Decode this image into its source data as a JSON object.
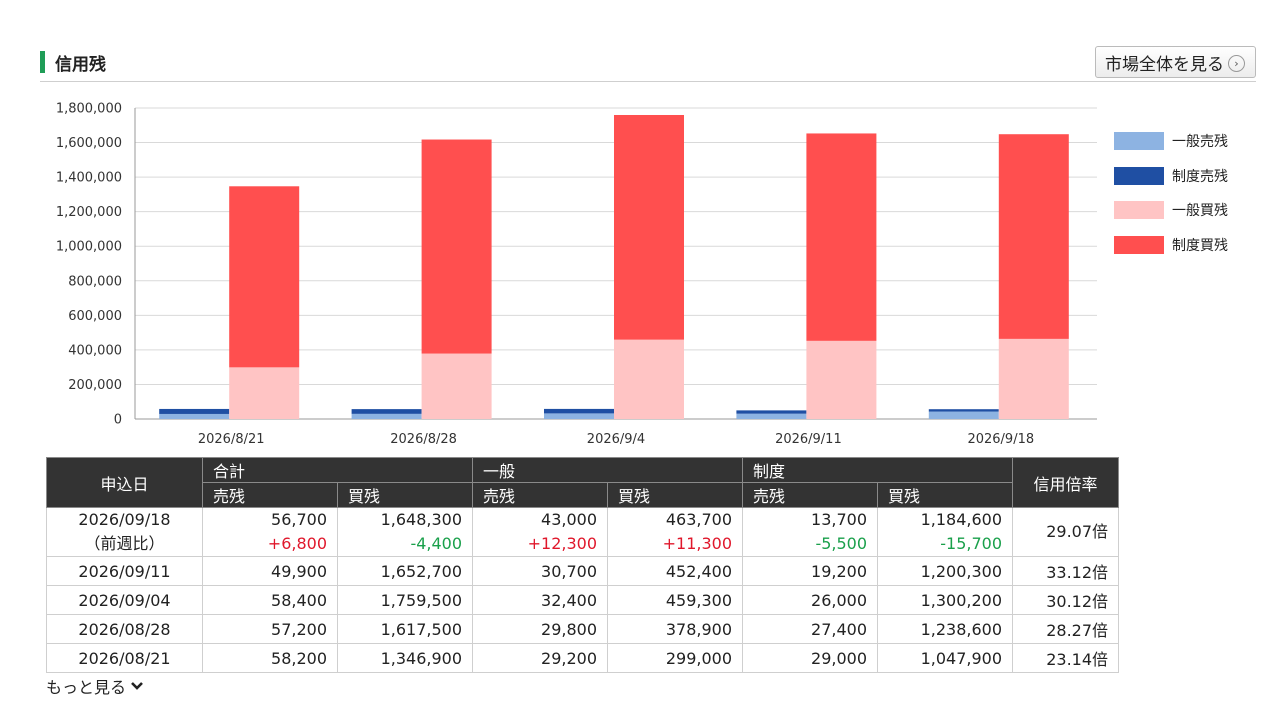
{
  "section": {
    "title": "信用残",
    "market_button": "市場全体を見る",
    "market_button_icon": "chevron-right-icon"
  },
  "colors": {
    "accent": "#1f9d57",
    "general_sell": "#8db3e2",
    "system_sell": "#1f4fa3",
    "general_buy": "#ffc4c4",
    "system_buy": "#ff4f4f"
  },
  "chart_data": {
    "type": "bar",
    "stacked": true,
    "categories": [
      "2026/8/21",
      "2026/8/28",
      "2026/9/4",
      "2026/9/11",
      "2026/9/18"
    ],
    "series": [
      {
        "name": "一般売残",
        "group": "sell",
        "values": [
          29200,
          29800,
          32400,
          30700,
          43000
        ]
      },
      {
        "name": "制度売残",
        "group": "sell",
        "values": [
          29000,
          27400,
          26000,
          19200,
          13700
        ]
      },
      {
        "name": "一般買残",
        "group": "buy",
        "values": [
          299000,
          378900,
          459300,
          452400,
          463700
        ]
      },
      {
        "name": "制度買残",
        "group": "buy",
        "values": [
          1047900,
          1238600,
          1300200,
          1200300,
          1184600
        ]
      }
    ],
    "ylim": [
      0,
      1800000
    ],
    "yticks": [
      "1,800,000",
      "1,600,000",
      "1,400,000",
      "1,200,000",
      "1,000,000",
      "800,000",
      "600,000",
      "400,000",
      "200,000",
      "0"
    ],
    "grid": true,
    "legend_position": "right"
  },
  "table": {
    "headers": {
      "date": "申込日",
      "total": "合計",
      "general": "一般",
      "system": "制度",
      "ratio": "信用倍率",
      "sell": "売残",
      "buy": "買残"
    },
    "first_row": {
      "date": "2026/09/18",
      "date_sub": "（前週比）",
      "cells": [
        {
          "value": "56,700",
          "delta": "+6,800",
          "sign": "pos"
        },
        {
          "value": "1,648,300",
          "delta": "-4,400",
          "sign": "neg"
        },
        {
          "value": "43,000",
          "delta": "+12,300",
          "sign": "pos"
        },
        {
          "value": "463,700",
          "delta": "+11,300",
          "sign": "pos"
        },
        {
          "value": "13,700",
          "delta": "-5,500",
          "sign": "neg"
        },
        {
          "value": "1,184,600",
          "delta": "-15,700",
          "sign": "neg"
        }
      ],
      "ratio": "29.07倍"
    },
    "rows": [
      {
        "date": "2026/09/11",
        "total_sell": "49,900",
        "total_buy": "1,652,700",
        "gen_sell": "30,700",
        "gen_buy": "452,400",
        "sys_sell": "19,200",
        "sys_buy": "1,200,300",
        "ratio": "33.12倍"
      },
      {
        "date": "2026/09/04",
        "total_sell": "58,400",
        "total_buy": "1,759,500",
        "gen_sell": "32,400",
        "gen_buy": "459,300",
        "sys_sell": "26,000",
        "sys_buy": "1,300,200",
        "ratio": "30.12倍"
      },
      {
        "date": "2026/08/28",
        "total_sell": "57,200",
        "total_buy": "1,617,500",
        "gen_sell": "29,800",
        "gen_buy": "378,900",
        "sys_sell": "27,400",
        "sys_buy": "1,238,600",
        "ratio": "28.27倍"
      },
      {
        "date": "2026/08/21",
        "total_sell": "58,200",
        "total_buy": "1,346,900",
        "gen_sell": "29,200",
        "gen_buy": "299,000",
        "sys_sell": "29,000",
        "sys_buy": "1,047,900",
        "ratio": "23.14倍"
      }
    ]
  },
  "more": {
    "label": "もっと見る",
    "icon": "chevron-down-icon"
  }
}
